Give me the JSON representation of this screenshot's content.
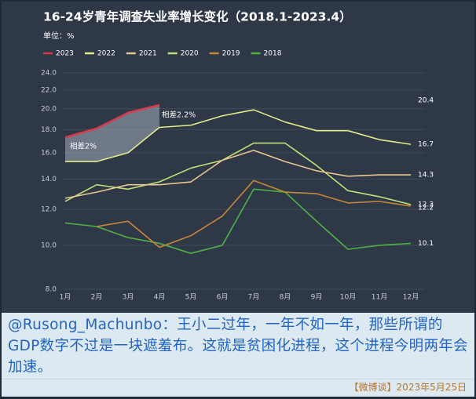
{
  "chart_data": {
    "type": "line",
    "title": "16-24岁青年调查失业率增长变化（2018.1-2023.4）",
    "subtitle": "单位：%",
    "categories": [
      "1月",
      "2月",
      "3月",
      "4月",
      "5月",
      "6月",
      "7月",
      "8月",
      "9月",
      "10月",
      "11月",
      "12月"
    ],
    "series": [
      {
        "name": "2023",
        "color": "#d63b4e",
        "values": [
          17.3,
          18.1,
          19.6,
          20.4,
          null,
          null,
          null,
          null,
          null,
          null,
          null,
          null
        ]
      },
      {
        "name": "2022",
        "color": "#e6ea8e",
        "values": [
          15.3,
          15.3,
          16.0,
          18.2,
          18.4,
          19.3,
          19.9,
          18.7,
          17.9,
          17.9,
          17.1,
          16.7
        ]
      },
      {
        "name": "2021",
        "color": "#e9c592",
        "values": [
          12.7,
          13.1,
          13.6,
          13.6,
          13.8,
          15.4,
          16.2,
          15.3,
          14.6,
          14.2,
          14.3,
          14.3
        ]
      },
      {
        "name": "2020",
        "color": "#bfe07a",
        "values": [
          12.5,
          13.6,
          13.3,
          13.8,
          14.8,
          15.4,
          16.8,
          16.8,
          15.0,
          13.2,
          12.8,
          12.3
        ]
      },
      {
        "name": "2019",
        "color": "#c9863a",
        "values": [
          null,
          11.0,
          11.3,
          9.9,
          10.5,
          11.6,
          13.9,
          13.1,
          13.0,
          12.4,
          12.5,
          12.2
        ]
      },
      {
        "name": "2018",
        "color": "#4eb144",
        "values": [
          11.2,
          11.0,
          10.4,
          10.1,
          9.6,
          10.0,
          13.3,
          13.1,
          11.3,
          9.8,
          10.0,
          10.1
        ]
      }
    ],
    "ylim": [
      8,
      24
    ],
    "yticks": [
      {
        "value": 8,
        "label": "8.0"
      },
      {
        "value": 10,
        "label": "10.0"
      },
      {
        "value": 12,
        "label": "12.0"
      },
      {
        "value": 14,
        "label": "14.0"
      },
      {
        "value": 16,
        "label": "16.0"
      },
      {
        "value": 18,
        "label": "18.0"
      },
      {
        "value": 20,
        "label": "20.0"
      },
      {
        "value": 22,
        "label": "22.0"
      },
      {
        "value": 24,
        "label": "24.0"
      }
    ],
    "log_scale": true,
    "grid": true,
    "legend": "top-left",
    "end_labels": true,
    "shade_between": [
      0,
      1
    ],
    "annotations": [
      "相差2%",
      "相差2.2%"
    ]
  },
  "caption": "@Rusong_Machunbo：王小二过年，一年不如一年，那些所谓的GDP数字不过是一块遮羞布。这就是贫困化进程，这个进程今明两年会加速。",
  "footer": "【微博谈】2023年5月25日"
}
